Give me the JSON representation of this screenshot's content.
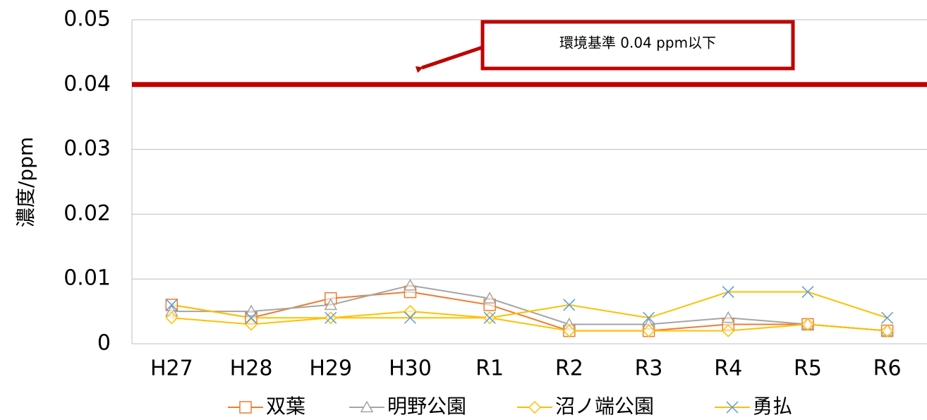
{
  "chart_data": {
    "type": "line",
    "y_axis_label": "濃度/ppm",
    "categories": [
      "H27",
      "H28",
      "H29",
      "H30",
      "R1",
      "R2",
      "R3",
      "R4",
      "R5",
      "R6"
    ],
    "series": [
      {
        "name": "双葉",
        "color": "#ED7D31",
        "line_color": "#ED7D31",
        "marker": "square",
        "values": [
          0.006,
          0.004,
          0.007,
          0.008,
          0.006,
          0.002,
          0.002,
          0.003,
          0.003,
          0.002
        ]
      },
      {
        "name": "明野公園",
        "color": "#A5A5A5",
        "line_color": "#A5A5A5",
        "marker": "triangle",
        "values": [
          0.005,
          0.005,
          0.006,
          0.009,
          0.007,
          0.003,
          0.003,
          0.004,
          0.003,
          0.002
        ]
      },
      {
        "name": "沼ノ端公園",
        "color": "#FFC000",
        "line_color": "#FFC000",
        "marker": "diamond",
        "values": [
          0.004,
          0.003,
          0.004,
          0.005,
          0.004,
          0.002,
          0.002,
          0.002,
          0.003,
          0.002
        ]
      },
      {
        "name": "勇払",
        "color": "#5B9BD5",
        "line_color": "#FFC000",
        "marker": "x",
        "values": [
          0.006,
          0.004,
          0.004,
          0.004,
          0.004,
          0.006,
          0.004,
          0.008,
          0.008,
          0.004
        ]
      }
    ],
    "ylim": [
      0,
      0.05
    ],
    "yticks": [
      0,
      0.01,
      0.02,
      0.03,
      0.04,
      0.05
    ],
    "grid": true,
    "legend": "bottom",
    "reference_line": {
      "value": 0.04,
      "color": "#C00000",
      "label": "環境基準 0.04 ppm以下"
    }
  }
}
